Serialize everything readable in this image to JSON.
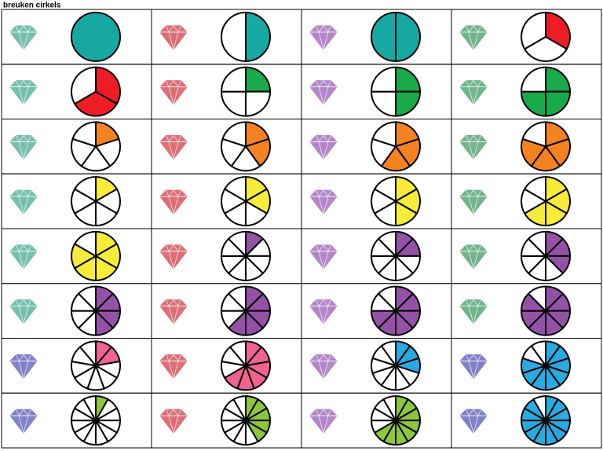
{
  "title": "breuken cirkels",
  "cells": [
    [
      {
        "gem": "#5fb5a0",
        "parts": 1,
        "filled": 1,
        "color": "#17a8a3"
      },
      {
        "gem": "#d9555f",
        "parts": 2,
        "filled": 1,
        "color": "#17a8a3"
      },
      {
        "gem": "#a872c0",
        "parts": 2,
        "filled": 2,
        "color": "#17a8a3"
      },
      {
        "gem": "#5aa877",
        "parts": 3,
        "filled": 1,
        "color": "#ee1c25"
      }
    ],
    [
      {
        "gem": "#5fb5a0",
        "parts": 3,
        "filled": 2,
        "color": "#ee1c25"
      },
      {
        "gem": "#d9555f",
        "parts": 4,
        "filled": 1,
        "color": "#1aaa4b"
      },
      {
        "gem": "#a872c0",
        "parts": 4,
        "filled": 2,
        "color": "#1aaa4b"
      },
      {
        "gem": "#5aa877",
        "parts": 4,
        "filled": 3,
        "color": "#1aaa4b"
      }
    ],
    [
      {
        "gem": "#5fb5a0",
        "parts": 5,
        "filled": 1,
        "color": "#f58220"
      },
      {
        "gem": "#d9555f",
        "parts": 5,
        "filled": 2,
        "color": "#f58220"
      },
      {
        "gem": "#a872c0",
        "parts": 5,
        "filled": 3,
        "color": "#f58220"
      },
      {
        "gem": "#5aa877",
        "parts": 5,
        "filled": 4,
        "color": "#f58220"
      }
    ],
    [
      {
        "gem": "#5fb5a0",
        "parts": 6,
        "filled": 1,
        "color": "#f7ec3a"
      },
      {
        "gem": "#d9555f",
        "parts": 6,
        "filled": 2,
        "color": "#f7ec3a"
      },
      {
        "gem": "#a872c0",
        "parts": 6,
        "filled": 3,
        "color": "#f7ec3a"
      },
      {
        "gem": "#5aa877",
        "parts": 6,
        "filled": 4,
        "color": "#f7ec3a"
      }
    ],
    [
      {
        "gem": "#5fb5a0",
        "parts": 6,
        "filled": 5,
        "color": "#f7ec3a"
      },
      {
        "gem": "#d9555f",
        "parts": 8,
        "filled": 1,
        "color": "#9452a7"
      },
      {
        "gem": "#a872c0",
        "parts": 8,
        "filled": 2,
        "color": "#9452a7"
      },
      {
        "gem": "#5aa877",
        "parts": 8,
        "filled": 3,
        "color": "#9452a7"
      }
    ],
    [
      {
        "gem": "#5fb5a0",
        "parts": 8,
        "filled": 4,
        "color": "#9452a7"
      },
      {
        "gem": "#d9555f",
        "parts": 8,
        "filled": 5,
        "color": "#9452a7"
      },
      {
        "gem": "#a872c0",
        "parts": 8,
        "filled": 6,
        "color": "#9452a7"
      },
      {
        "gem": "#5aa877",
        "parts": 8,
        "filled": 7,
        "color": "#9452a7"
      }
    ],
    [
      {
        "gem": "#6c6cc0",
        "parts": 9,
        "filled": 2,
        "color": "#f06292"
      },
      {
        "gem": "#d9555f",
        "parts": 9,
        "filled": 6,
        "color": "#f06292"
      },
      {
        "gem": "#a872c0",
        "parts": 10,
        "filled": 3,
        "color": "#29aae1"
      },
      {
        "gem": "#6c6cc0",
        "parts": 10,
        "filled": 8,
        "color": "#29aae1"
      }
    ],
    [
      {
        "gem": "#6c6cc0",
        "parts": 12,
        "filled": 1,
        "color": "#8cc63f"
      },
      {
        "gem": "#d9555f",
        "parts": 12,
        "filled": 5,
        "color": "#8cc63f"
      },
      {
        "gem": "#a872c0",
        "parts": 12,
        "filled": 8,
        "color": "#8cc63f"
      },
      {
        "gem": "#6c6cc0",
        "parts": 12,
        "filled": 11,
        "color": "#29aae1"
      }
    ]
  ]
}
